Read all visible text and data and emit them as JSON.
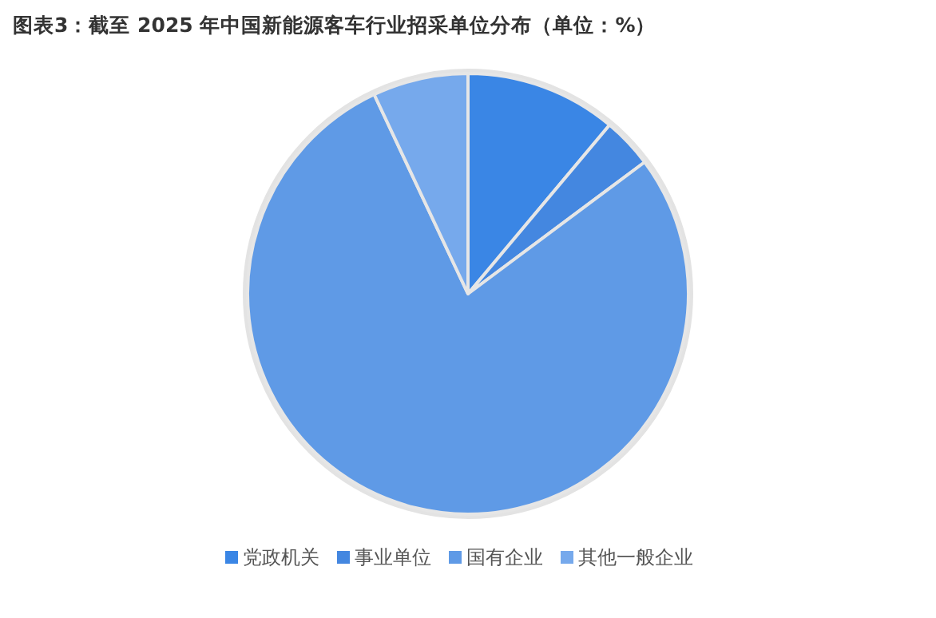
{
  "chart_data": {
    "type": "pie",
    "title": "图表3：截至 2025 年中国新能源客车行业招采单位分布（单位：%）",
    "categories": [
      "党政机关",
      "事业单位",
      "国有企业",
      "其他一般企业"
    ],
    "values": [
      11.1,
      3.7,
      78.2,
      7.0
    ],
    "colors": [
      "#3a86e5",
      "#4487e0",
      "#5f9ae6",
      "#76a9ec"
    ],
    "legend": "bottom"
  }
}
